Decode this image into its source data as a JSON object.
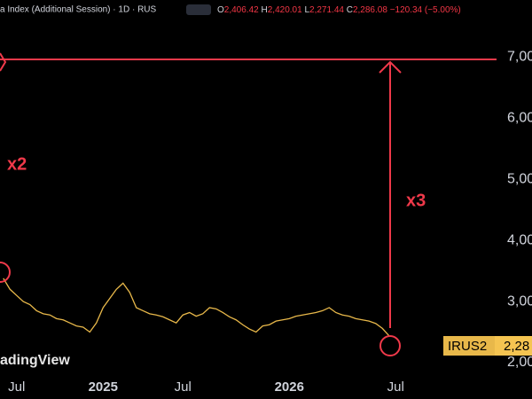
{
  "chart_data": {
    "type": "line",
    "title": "a Index (Additional Session) · 1D · RUS",
    "ohlc": [
      {
        "key": "O",
        "value": "2,406.42"
      },
      {
        "key": "H",
        "value": "2,420.01"
      },
      {
        "key": "L",
        "value": "2,271.44"
      },
      {
        "key": "C",
        "value": "2,286.08"
      }
    ],
    "change": "−120.34 (−5.00%)",
    "categories": [
      null,
      null,
      "Jul",
      null,
      null,
      null,
      null,
      null,
      null,
      null,
      null,
      null,
      null,
      null,
      null,
      "2025",
      null,
      null,
      null,
      null,
      null,
      null,
      null,
      null,
      null,
      null,
      null,
      "Jul",
      null,
      null,
      null,
      null,
      null,
      null,
      null,
      null,
      null,
      null,
      null,
      null,
      null,
      null,
      null,
      "2026",
      null,
      null,
      null,
      null,
      null,
      null,
      null,
      null,
      null,
      null,
      null,
      null,
      null,
      null,
      null,
      "Jul",
      null,
      null,
      null,
      null,
      null,
      null,
      null,
      null,
      null,
      null,
      null,
      null
    ],
    "series": [
      {
        "name": "IRUS2",
        "color": "#e8b84a",
        "values": [
          3380,
          3200,
          3100,
          3000,
          2950,
          2850,
          2800,
          2780,
          2720,
          2700,
          2650,
          2600,
          2580,
          2500,
          2650,
          2900,
          3050,
          3200,
          3300,
          3150,
          2900,
          2850,
          2800,
          2780,
          2750,
          2700,
          2650,
          2780,
          2820,
          2760,
          2800,
          2900,
          2880,
          2820,
          2750,
          2700,
          2620,
          2550,
          2500,
          2600,
          2620,
          2680,
          2700,
          2720,
          2760,
          2780,
          2800,
          2820,
          2850,
          2900,
          2820,
          2780,
          2760,
          2720,
          2700,
          2680,
          2640,
          2560,
          2440,
          null,
          null,
          null,
          null,
          null,
          null,
          null,
          null,
          null,
          null,
          null,
          null,
          null
        ]
      }
    ],
    "ylim": [
      1840,
      7500
    ],
    "yticks": [
      {
        "value": 2000,
        "label": "2,00"
      },
      {
        "value": 3000,
        "label": "3,00"
      },
      {
        "value": 4000,
        "label": "4,00"
      },
      {
        "value": 5000,
        "label": "5,00"
      },
      {
        "value": 6000,
        "label": "6,00"
      },
      {
        "value": 7000,
        "label": "7,00"
      }
    ],
    "price_tag": {
      "name": "IRUS2",
      "label": "2,28"
    },
    "annotations": [
      "x2",
      "x3"
    ],
    "watermark": "adingView",
    "grid": false
  }
}
